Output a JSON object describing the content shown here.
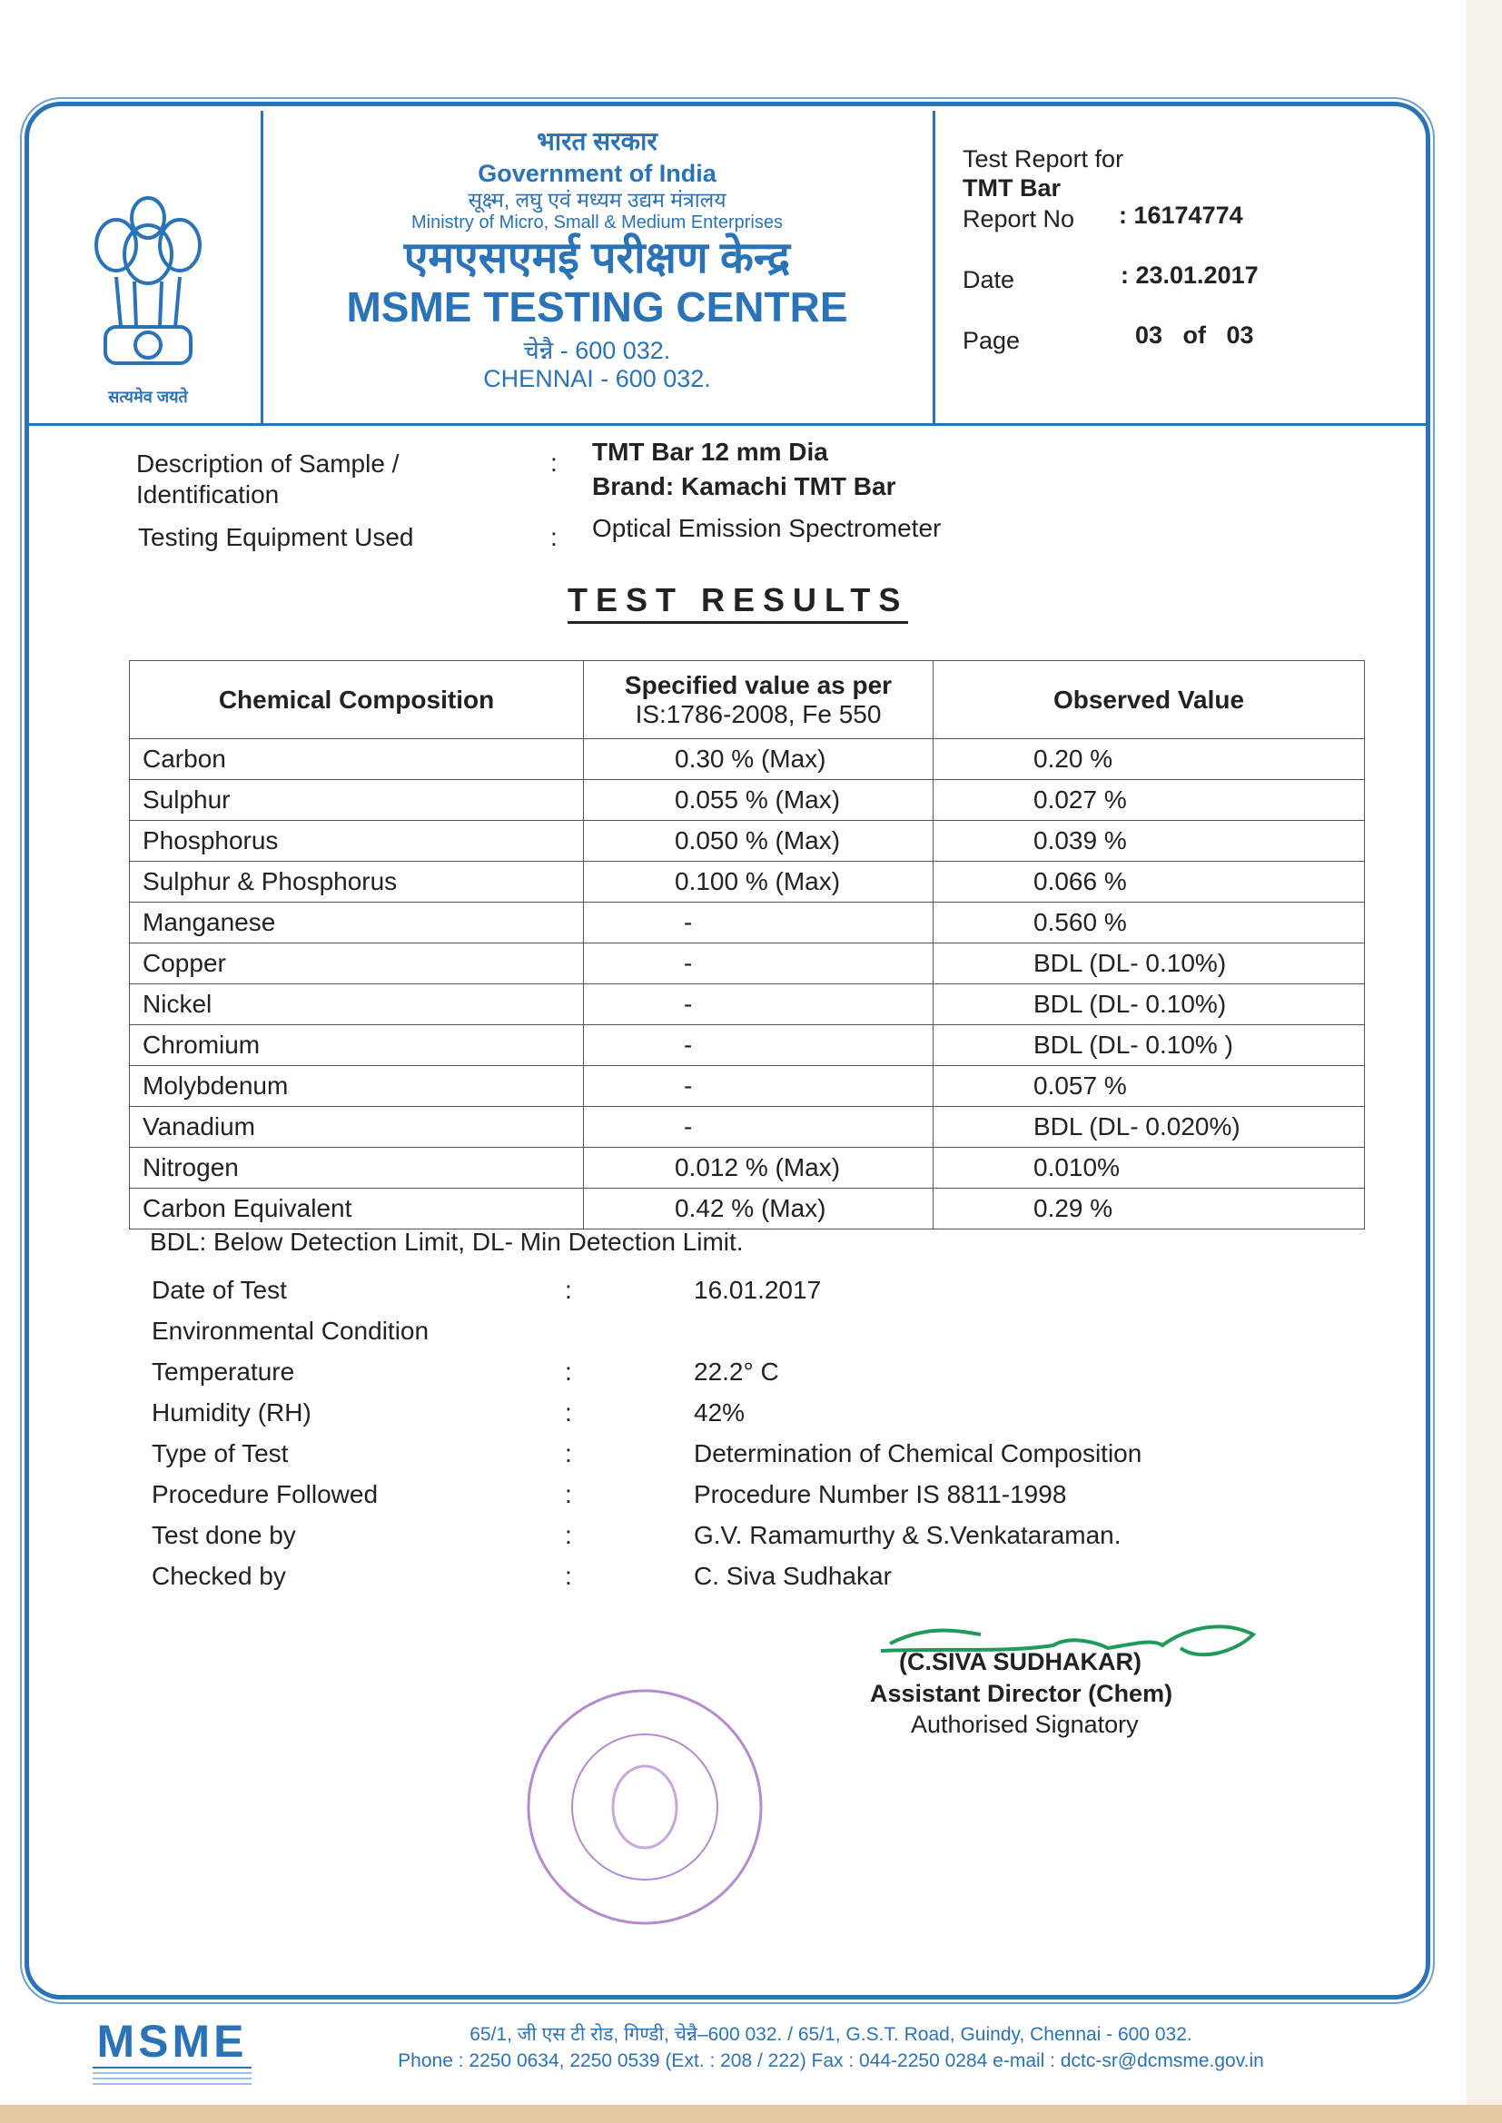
{
  "header": {
    "hindi_gov": "भारत सरकार",
    "gov": "Government of India",
    "hindi_ministry": "सूक्ष्म, लघु एवं मध्यम उद्यम मंत्रालय",
    "ministry": "Ministry of Micro, Small & Medium Enterprises",
    "hindi_centre": "एमएसएमई परीक्षण केन्द्र",
    "centre": "MSME TESTING CENTRE",
    "hindi_city": "चेन्नै - 600 032.",
    "city": "CHENNAI - 600 032.",
    "emblem_motto": "सत्यमेव जयते"
  },
  "report": {
    "for_label": "Test Report for",
    "product": "TMT  Bar",
    "no_label": "Report No",
    "no_value": ": 16174774",
    "date_label": "Date",
    "date_value": ": 23.01.2017",
    "page_label": "Page",
    "page_value": "03   of   03"
  },
  "sample": [
    {
      "label": "Description of Sample / Identification",
      "colon": ":",
      "value": "TMT Bar 12 mm Dia",
      "value2": "Brand: Kamachi TMT Bar"
    },
    {
      "label": "Testing Equipment Used",
      "colon": ":",
      "value": "Optical Emission Spectrometer"
    }
  ],
  "results_title": "TEST RESULTS",
  "table": {
    "headers": [
      "Chemical Composition",
      "Specified value as per",
      "IS:1786-2008, Fe 550",
      "Observed Value"
    ],
    "rows": [
      [
        "Carbon",
        "0.30  % (Max)",
        "0.20   %"
      ],
      [
        "Sulphur",
        "0.055 % (Max)",
        "0.027  %"
      ],
      [
        "Phosphorus",
        "0.050 % (Max)",
        "0.039  %"
      ],
      [
        "Sulphur & Phosphorus",
        "0.100 % (Max)",
        "0.066 %"
      ],
      [
        "Manganese",
        "-",
        "0.560  %"
      ],
      [
        "Copper",
        "-",
        "BDL (DL- 0.10%)"
      ],
      [
        "Nickel",
        "-",
        "BDL (DL- 0.10%)"
      ],
      [
        "Chromium",
        "-",
        "BDL (DL- 0.10% )"
      ],
      [
        "Molybdenum",
        "-",
        "0.057 %"
      ],
      [
        "Vanadium",
        "-",
        "BDL (DL- 0.020%)"
      ],
      [
        "Nitrogen",
        "0.012 % (Max)",
        "0.010%"
      ],
      [
        "Carbon Equivalent",
        "0.42   % (Max)",
        "0.29 %"
      ]
    ]
  },
  "note": "BDL: Below Detection Limit, DL- Min Detection Limit.",
  "info": [
    {
      "label": "Date of Test",
      "colon": ":",
      "value": "16.01.2017"
    },
    {
      "label": "Environmental Condition",
      "colon": "",
      "value": ""
    },
    {
      "label": "Temperature",
      "colon": ":",
      "value": "22.2° C"
    },
    {
      "label": "Humidity (RH)",
      "colon": ":",
      "value": "42%"
    },
    {
      "label": "Type of Test",
      "colon": ":",
      "value": "Determination of Chemical Composition"
    },
    {
      "label": "Procedure Followed",
      "colon": ":",
      "value": "Procedure Number IS 8811-1998"
    },
    {
      "label": "Test done by",
      "colon": ":",
      "value": "G.V. Ramamurthy & S.Venkataraman."
    },
    {
      "label": "Checked by",
      "colon": ":",
      "value": "C. Siva Sudhakar"
    }
  ],
  "signatory": {
    "name": "(C.SIVA SUDHAKAR)",
    "title": "Assistant Director (Chem)",
    "role": "Authorised Signatory"
  },
  "footer": {
    "logo": "MSME",
    "address": "65/1, जी एस टी रोड, गिण्डी, चेन्नै–600 032. / 65/1, G.S.T. Road, Guindy, Chennai - 600 032.",
    "contact": "Phone : 2250 0634, 2250 0539 (Ext. : 208 / 222) Fax : 044-2250 0284  e-mail : dctc-sr@dcmsme.gov.in"
  },
  "colors": {
    "brand_blue": "#2a73b8",
    "signature_green": "#1f9a5a",
    "stamp_purple": "#b58ad0"
  }
}
